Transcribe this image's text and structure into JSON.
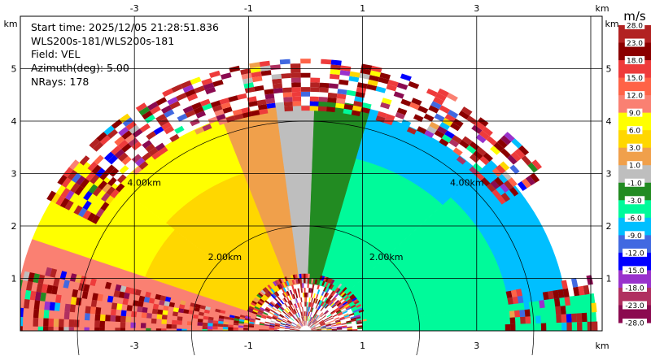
{
  "info": {
    "start_time": "Start time: 2025/12/05 21:28:51.836",
    "instrument": "WLS200s-181/WLS200s-181",
    "field": "Field: VEL",
    "azimuth": "Azimuth(deg): 5.00",
    "nrays": "NRays: 178"
  },
  "chart_data": {
    "type": "heatmap",
    "subtype": "polar RHI sector (lidar radial velocity)",
    "field": "VEL",
    "units": "m/s",
    "xlim": [
      -5.0,
      5.2
    ],
    "ylim": [
      0,
      6.0
    ],
    "x_ticks": [
      "-3",
      "-1",
      "1",
      "3"
    ],
    "x_unit_label": "km",
    "y_ticks": [
      "1",
      "2",
      "3",
      "4",
      "5"
    ],
    "y_unit_label": "km",
    "grid": true,
    "range_rings": [
      {
        "radius_km": 2,
        "label": "2.00km"
      },
      {
        "radius_km": 4,
        "label": "4.00km"
      }
    ],
    "max_range_km": 5.1,
    "colorbar": {
      "title": "m/s",
      "boundaries": [
        "28.0",
        "23.0",
        "18.0",
        "15.0",
        "12.0",
        "9.0",
        "6.0",
        "3.0",
        "1.0",
        "-1.0",
        "-3.0",
        "-6.0",
        "-9.0",
        "-12.0",
        "-15.0",
        "-18.0",
        "-23.0",
        "-28.0"
      ],
      "colors": [
        "#b22222",
        "#8b0000",
        "#ee3b3b",
        "#ff6347",
        "#fa8072",
        "#ffff00",
        "#ffd700",
        "#f0a04b",
        "#bebebe",
        "#228b22",
        "#00fa9a",
        "#00bfff",
        "#4169e1",
        "#0000ff",
        "#9932cc",
        "#b03060",
        "#8b0a50"
      ]
    },
    "sectors": [
      {
        "az": [
          0,
          8
        ],
        "r": [
          1,
          5.1
        ],
        "velocity": -4
      },
      {
        "az": [
          8,
          45
        ],
        "r": [
          0.9,
          3.6
        ],
        "velocity": -4
      },
      {
        "az": [
          8,
          45
        ],
        "r": [
          3.6,
          4.6
        ],
        "velocity": -7
      },
      {
        "az": [
          45,
          75
        ],
        "r": [
          0.9,
          3.4
        ],
        "velocity": -4
      },
      {
        "az": [
          45,
          75
        ],
        "r": [
          3.4,
          4.3
        ],
        "velocity": -7
      },
      {
        "az": [
          75,
          88
        ],
        "r": [
          0.9,
          4.4
        ],
        "velocity": -2
      },
      {
        "az": [
          88,
          97
        ],
        "r": [
          0.9,
          4.3
        ],
        "velocity": 0
      },
      {
        "az": [
          97,
          110
        ],
        "r": [
          0.9,
          4.3
        ],
        "velocity": 2
      },
      {
        "az": [
          110,
          140
        ],
        "r": [
          0.9,
          3.2
        ],
        "velocity": 4
      },
      {
        "az": [
          110,
          140
        ],
        "r": [
          3.2,
          4.3
        ],
        "velocity": 7
      },
      {
        "az": [
          140,
          160
        ],
        "r": [
          0.9,
          3.0
        ],
        "velocity": 4
      },
      {
        "az": [
          140,
          160
        ],
        "r": [
          3.0,
          5.1
        ],
        "velocity": 7
      },
      {
        "az": [
          160,
          172
        ],
        "r": [
          0.9,
          5.1
        ],
        "velocity": 10
      },
      {
        "az": [
          172,
          180
        ],
        "r": [
          0.5,
          5.1
        ],
        "velocity": 10
      }
    ],
    "noisy_regions": [
      {
        "az": [
          0,
          180
        ],
        "r": [
          0.1,
          1.0
        ]
      },
      {
        "az": [
          35,
          150
        ],
        "r": [
          4.2,
          5.1
        ]
      },
      {
        "az": [
          0,
          12
        ],
        "r": [
          3.5,
          5.1
        ]
      },
      {
        "az": [
          165,
          180
        ],
        "r": [
          1.0,
          5.1
        ]
      }
    ]
  }
}
